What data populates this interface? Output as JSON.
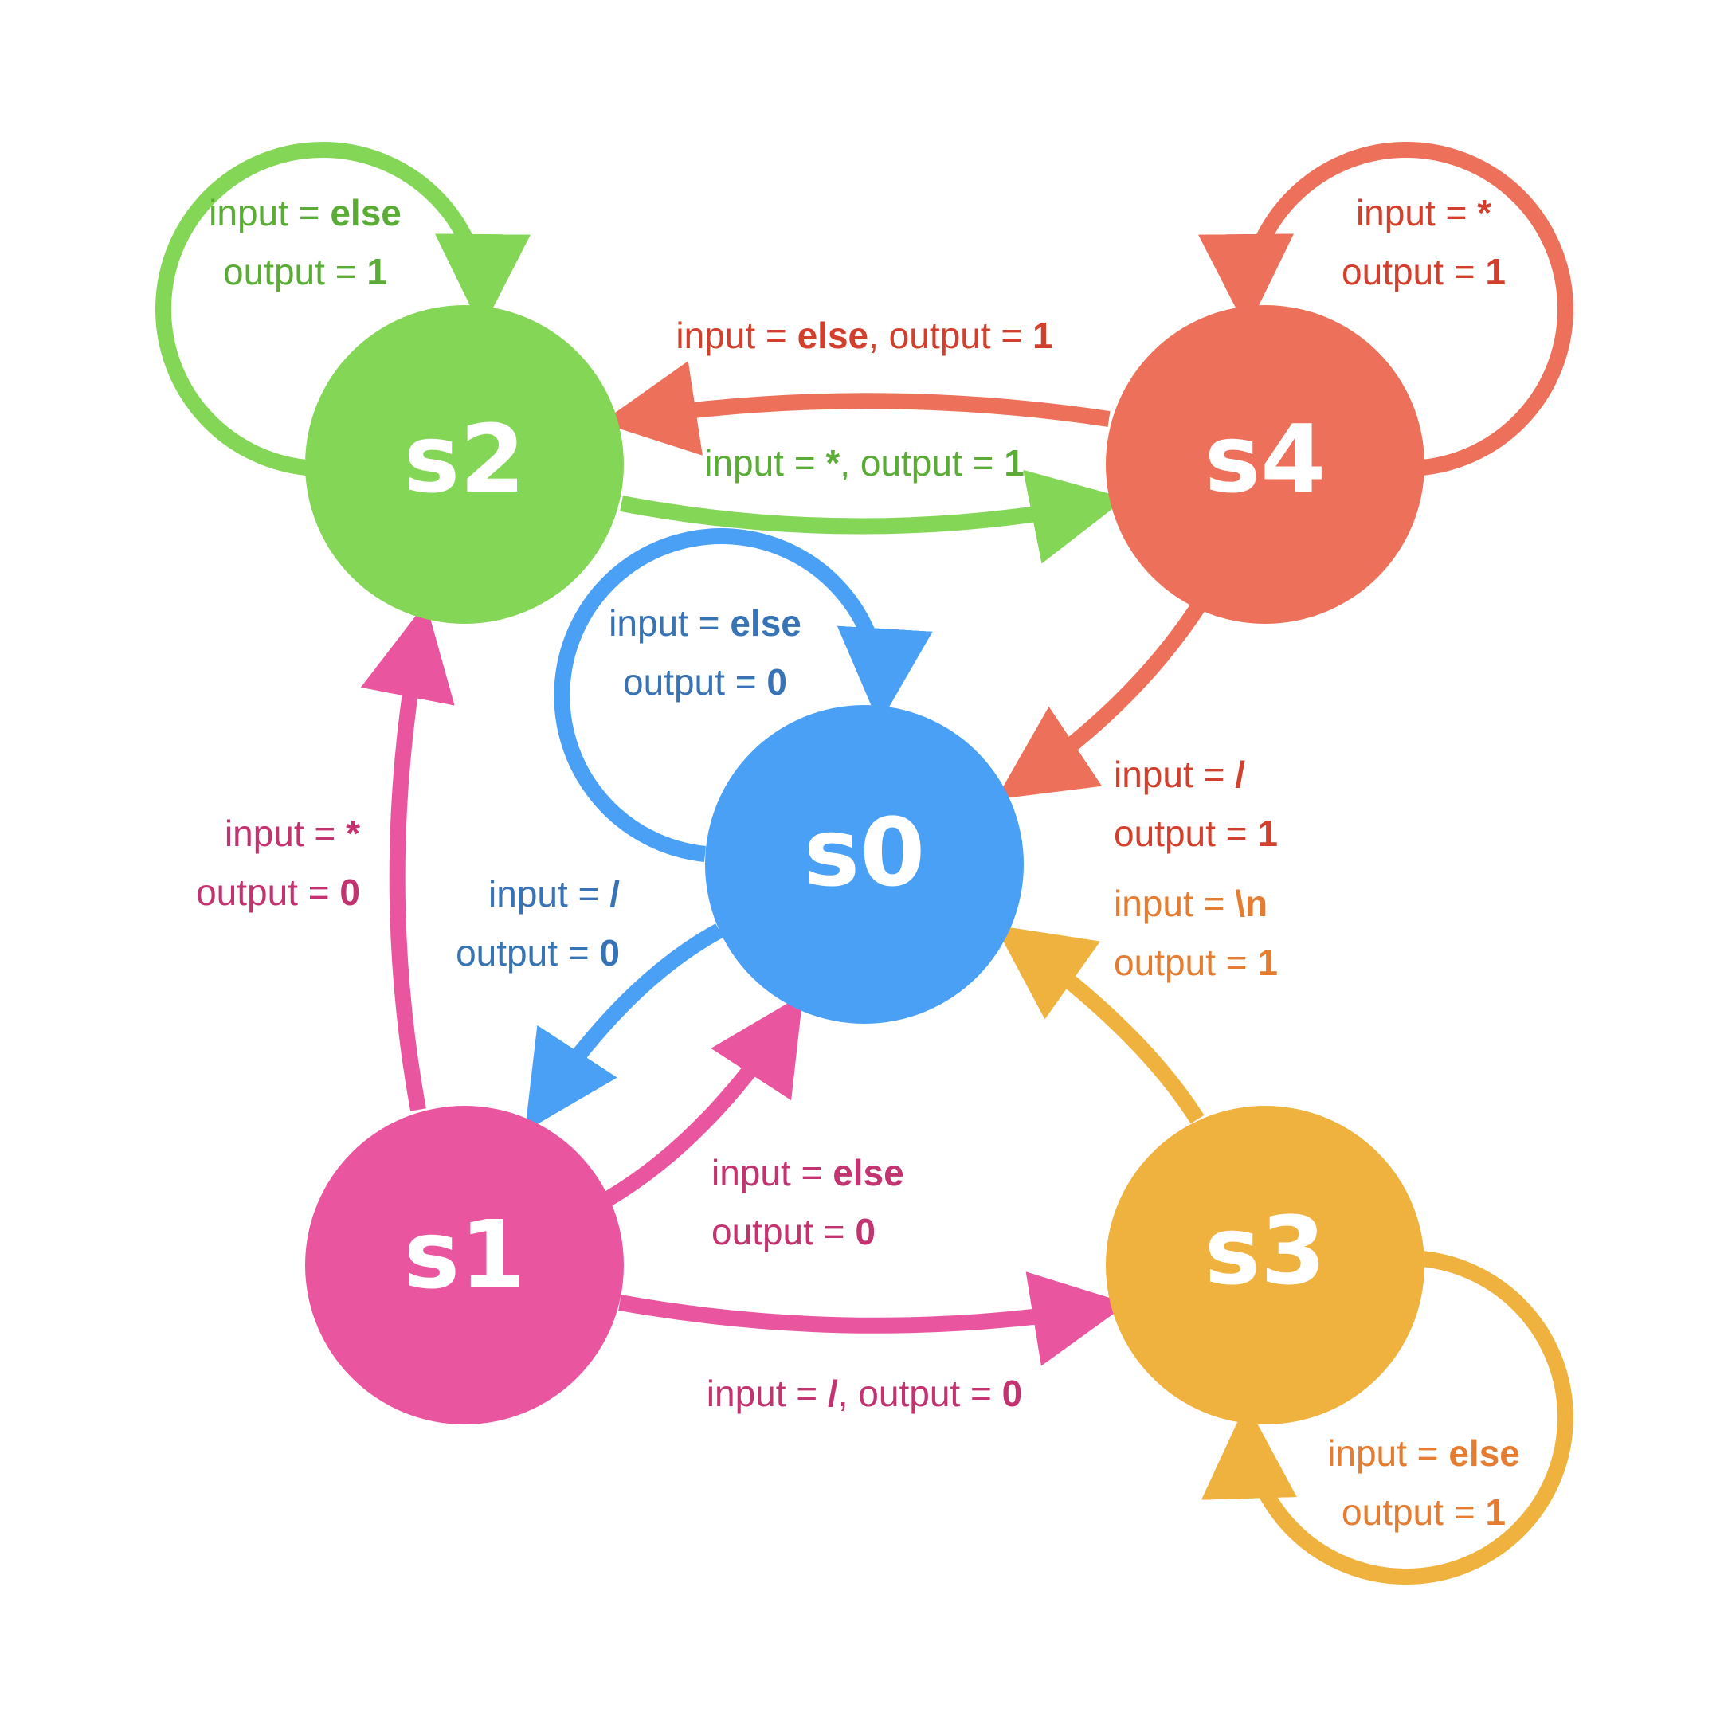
{
  "states": [
    {
      "id": "s0",
      "label": "s0",
      "color": "#49a0f5"
    },
    {
      "id": "s1",
      "label": "s1",
      "color": "#ea559f"
    },
    {
      "id": "s2",
      "label": "s2",
      "color": "#84d657"
    },
    {
      "id": "s3",
      "label": "s3",
      "color": "#f0b23f"
    },
    {
      "id": "s4",
      "label": "s4",
      "color": "#ec705a"
    }
  ],
  "label_colors": {
    "blue": "#3873b5",
    "pink": "#c3336f",
    "green": "#5aac36",
    "orange": "#e47c31",
    "red": "#d2402d"
  },
  "transitions": {
    "s2_self": {
      "from": "s2",
      "to": "s2",
      "input": "else",
      "output": "1"
    },
    "s4_self": {
      "from": "s4",
      "to": "s4",
      "input": "*",
      "output": "1"
    },
    "s0_self": {
      "from": "s0",
      "to": "s0",
      "input": "else",
      "output": "0"
    },
    "s3_self": {
      "from": "s3",
      "to": "s3",
      "input": "else",
      "output": "1"
    },
    "s4_s2": {
      "from": "s4",
      "to": "s2",
      "input": "else",
      "output": "1"
    },
    "s2_s4": {
      "from": "s2",
      "to": "s4",
      "input": "*",
      "output": "1"
    },
    "s4_s0": {
      "from": "s4",
      "to": "s0",
      "input": "/",
      "output": "1"
    },
    "s3_s0": {
      "from": "s3",
      "to": "s0",
      "input": "\\n",
      "output": "1"
    },
    "s1_s2": {
      "from": "s1",
      "to": "s2",
      "input": "*",
      "output": "0"
    },
    "s0_s1": {
      "from": "s0",
      "to": "s1",
      "input": "/",
      "output": "0"
    },
    "s1_s0": {
      "from": "s1",
      "to": "s0",
      "input": "else",
      "output": "0"
    },
    "s1_s3": {
      "from": "s1",
      "to": "s3",
      "input": "/",
      "output": "0"
    }
  },
  "text": {
    "input_prefix": "input = ",
    "output_prefix": "output = ",
    "separator": ", "
  }
}
